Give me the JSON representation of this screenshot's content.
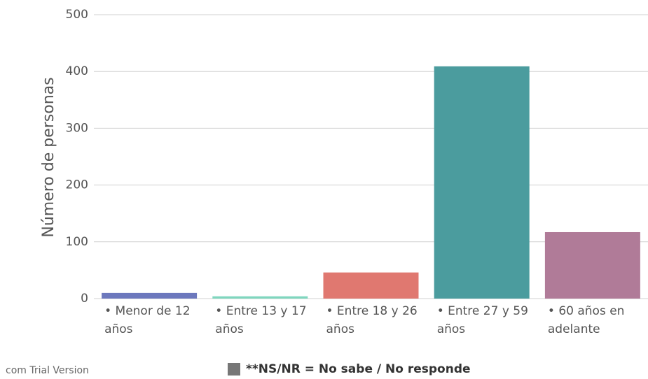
{
  "chart_data": {
    "type": "bar",
    "ylabel": "Número de personas",
    "categories": [
      "• Menor de 12 años",
      "• Entre 13 y 17 años",
      "• Entre 18 y 26 años",
      "• Entre 27 y 59 años",
      "• 60 años en adelante"
    ],
    "values": [
      10,
      4,
      46,
      409,
      117
    ],
    "colors": [
      "#6c78bd",
      "#7fd6be",
      "#e07870",
      "#4b9c9e",
      "#b07b98"
    ],
    "ylim": [
      0,
      500
    ],
    "yticks": [
      0,
      100,
      200,
      300,
      400,
      500
    ],
    "grid": true,
    "legend": {
      "label": "**NS/NR = No sabe / No responde",
      "color": "#777777"
    },
    "watermark": "com Trial Version"
  }
}
